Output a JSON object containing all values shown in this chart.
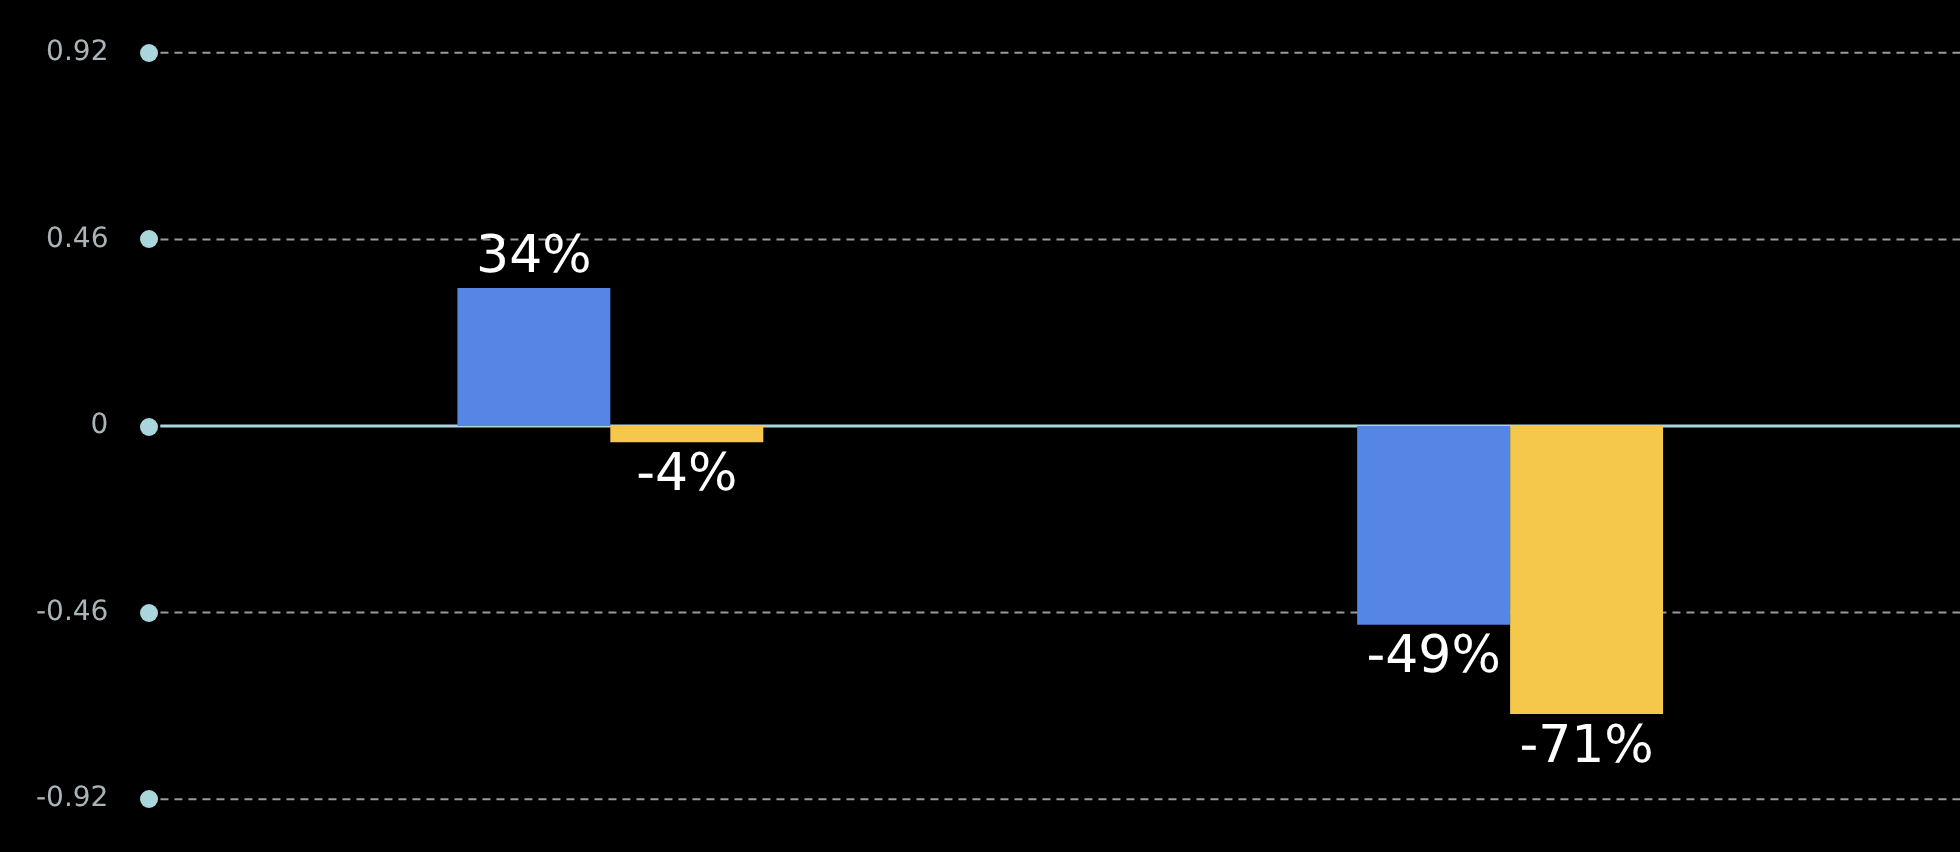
{
  "chart_data": {
    "type": "bar",
    "categories": [
      null,
      null
    ],
    "series": [
      {
        "color": "#5585e5",
        "values": [
          0.34,
          -0.49
        ],
        "value_labels": [
          "34%",
          "-49%"
        ]
      },
      {
        "color": "#f5c84c",
        "values": [
          -0.04,
          -0.71
        ],
        "value_labels": [
          "-4%",
          "-71%"
        ]
      }
    ],
    "ref_lines": [
      {
        "axis": "y",
        "value": 0,
        "color": "#a9d6dc"
      }
    ],
    "ylim": [
      -0.92,
      0.92
    ],
    "yticks": [
      0.92,
      0.46,
      0,
      -0.46,
      -0.92
    ],
    "grid": "y",
    "legend": false,
    "tick_labels": "y"
  }
}
